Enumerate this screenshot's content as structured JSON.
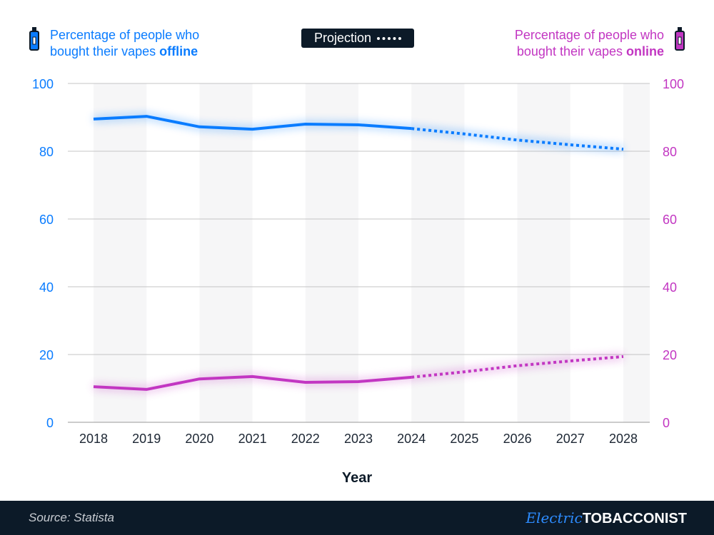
{
  "legend": {
    "offline": {
      "line1": "Percentage of people who",
      "line2": "bought their vapes ",
      "bold": "offline",
      "icon": "vape-pen-icon",
      "color": "#0a7cff"
    },
    "online": {
      "line1": "Percentage of people who",
      "line2": "bought their vapes ",
      "bold": "online",
      "icon": "vape-pen-icon",
      "color": "#c236c2"
    },
    "projection": "Projection"
  },
  "chart_data": {
    "type": "line",
    "xlabel": "Year",
    "categories": [
      "2018",
      "2019",
      "2020",
      "2021",
      "2022",
      "2023",
      "2024",
      "2025",
      "2026",
      "2027",
      "2028"
    ],
    "projection_from": "2024",
    "ylim": [
      0,
      100
    ],
    "yticks": [
      0,
      20,
      40,
      60,
      80,
      100
    ],
    "grid": true,
    "series": [
      {
        "name": "Percentage of people who bought their vapes offline",
        "axis": "left",
        "color": "#0a7cff",
        "values": [
          89.5,
          90.3,
          87.2,
          86.5,
          88.0,
          87.8,
          86.7,
          85.1,
          83.3,
          81.9,
          80.6
        ]
      },
      {
        "name": "Percentage of people who bought their vapes online",
        "axis": "right",
        "color": "#c236c2",
        "values": [
          10.5,
          9.7,
          12.8,
          13.5,
          11.8,
          12.0,
          13.3,
          14.9,
          16.7,
          18.1,
          19.4
        ]
      }
    ]
  },
  "footer": {
    "source": "Source: Statista",
    "logo_script": "Electric",
    "logo_text": "TOBACCONIST"
  }
}
